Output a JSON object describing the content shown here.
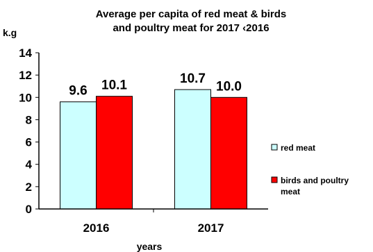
{
  "chart_data": {
    "type": "bar",
    "title_lines": [
      "Average per capita of red meat & birds",
      "and poultry meat for 2017 ‹2016"
    ],
    "ylabel": "k.g",
    "xlabel": "years",
    "categories": [
      "2016",
      "2017"
    ],
    "ylim": [
      0,
      14
    ],
    "yticks": [
      0,
      2,
      4,
      6,
      8,
      10,
      12,
      14
    ],
    "grid": false,
    "legend_position": "right",
    "series": [
      {
        "name": "red meat",
        "values": [
          9.6,
          10.7
        ],
        "value_labels": [
          "9.6",
          "10.7"
        ],
        "color": "#ccffff"
      },
      {
        "name_lines": [
          "birds and poultry",
          "meat"
        ],
        "values": [
          10.1,
          10.0
        ],
        "value_labels": [
          "10.1",
          "10.0"
        ],
        "color": "#ff0000"
      }
    ]
  }
}
